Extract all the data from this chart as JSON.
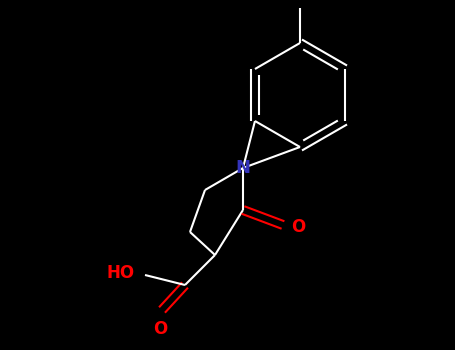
{
  "background_color": "#000000",
  "bond_color": "#ffffff",
  "N_color": "#3333bb",
  "O_color": "#ff0000",
  "font_size": 11,
  "figsize": [
    4.55,
    3.5
  ],
  "dpi": 100,
  "xlim": [
    0,
    455
  ],
  "ylim": [
    0,
    350
  ]
}
